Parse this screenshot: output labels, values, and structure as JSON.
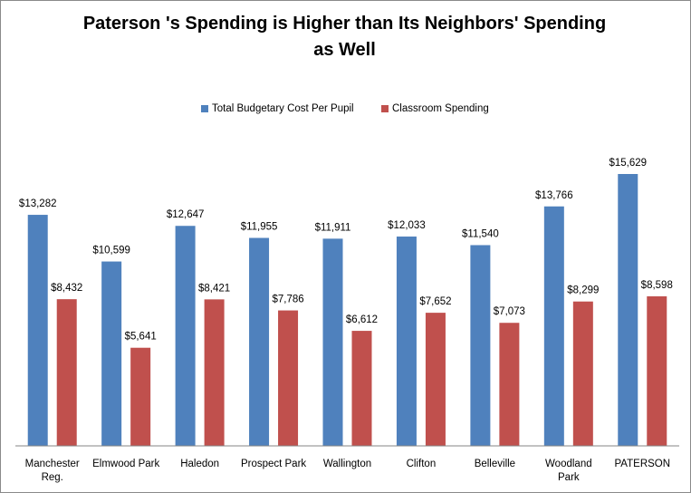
{
  "chart_data": {
    "type": "bar",
    "title_line1": "Paterson 's Spending is Higher than Its Neighbors' Spending",
    "title_line2": "as Well",
    "categories": [
      [
        "Manchester",
        "Reg."
      ],
      [
        "Elmwood Park"
      ],
      [
        "Haledon"
      ],
      [
        "Prospect Park"
      ],
      [
        "Wallington"
      ],
      [
        "Clifton"
      ],
      [
        "Belleville"
      ],
      [
        "Woodland",
        "Park"
      ],
      [
        "PATERSON"
      ]
    ],
    "series": [
      {
        "name": "Total Budgetary Cost Per Pupil",
        "color": "#4f81bd",
        "values": [
          13282,
          10599,
          12647,
          11955,
          11911,
          12033,
          11540,
          13766,
          15629
        ],
        "labels": [
          "$13,282",
          "$10,599",
          "$12,647",
          "$11,955",
          "$11,911",
          "$12,033",
          "$11,540",
          "$13,766",
          "$15,629"
        ]
      },
      {
        "name": "Classroom Spending",
        "color": "#c0504d",
        "values": [
          8432,
          5641,
          8421,
          7786,
          6612,
          7652,
          7073,
          8299,
          8598
        ],
        "labels": [
          "$8,432",
          "$5,641",
          "$8,421",
          "$7,786",
          "$6,612",
          "$7,652",
          "$7,073",
          "$8,299",
          "$8,598"
        ]
      }
    ],
    "ylim": [
      0,
      18000
    ],
    "grid": false,
    "legend_position": "top-center",
    "xlabel": "",
    "ylabel": ""
  }
}
